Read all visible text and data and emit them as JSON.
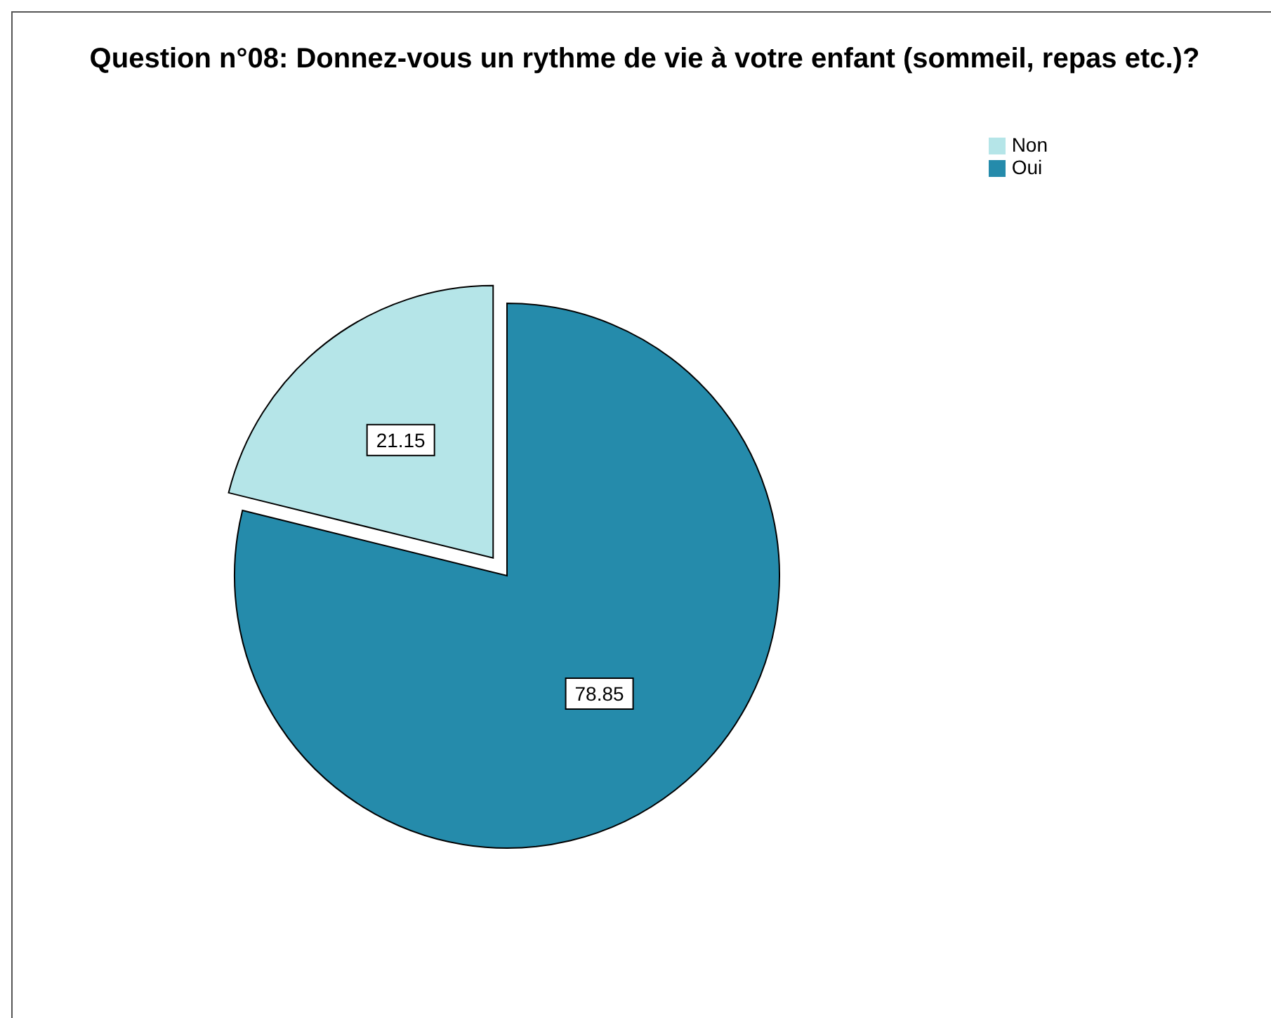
{
  "chart_data": {
    "type": "pie",
    "title": "Question n°08: Donnez-vous un rythme de vie à votre enfant (sommeil, repas etc.)?",
    "categories": [
      "Oui",
      "Non"
    ],
    "values": [
      78.85,
      21.15
    ],
    "colors": [
      "#258bab",
      "#b5e5e8"
    ],
    "data_labels": true,
    "legend": "top right"
  }
}
